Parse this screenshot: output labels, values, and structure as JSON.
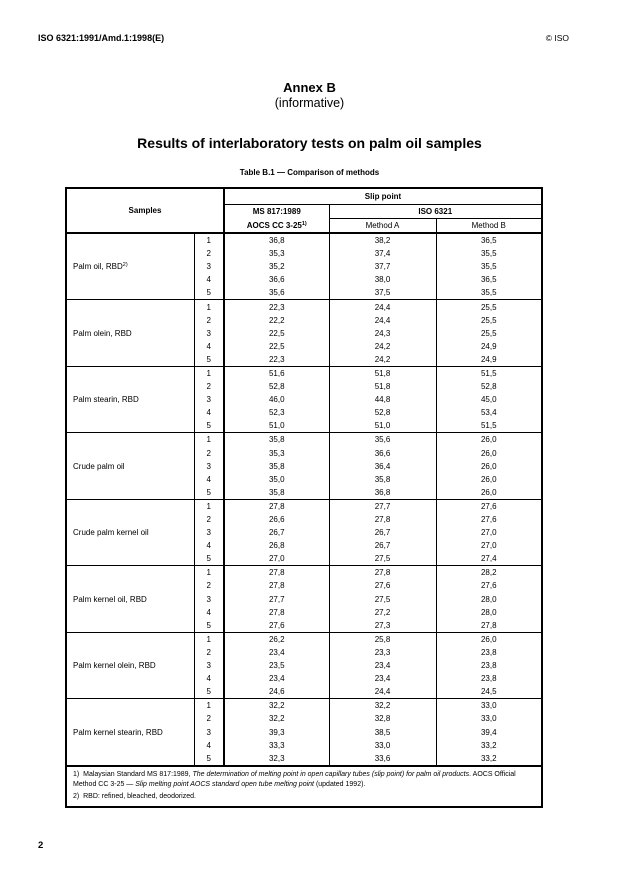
{
  "header": {
    "doc_id": "ISO 6321:1991/Amd.1:1998(E)",
    "copyright": "© ISO"
  },
  "annex": {
    "label": "Annex B",
    "type": "(informative)",
    "title": "Results of interlaboratory tests on palm oil samples"
  },
  "table": {
    "caption": "Table B.1 — Comparison of methods",
    "headers": {
      "samples": "Samples",
      "slip_point": "Slip point",
      "ms": "MS 817:1989",
      "aocs": "AOCS CC 3-25",
      "aocs_note": "1)",
      "iso": "ISO 6321",
      "method_a": "Method A",
      "method_b": "Method B"
    },
    "groups": [
      {
        "name": "Palm oil, RBD",
        "note": "2)",
        "rows": [
          [
            "1",
            "36,8",
            "38,2",
            "36,5"
          ],
          [
            "2",
            "35,3",
            "37,4",
            "35,5"
          ],
          [
            "3",
            "35,2",
            "37,7",
            "35,5"
          ],
          [
            "4",
            "36,6",
            "38,0",
            "36,5"
          ],
          [
            "5",
            "35,6",
            "37,5",
            "35,5"
          ]
        ]
      },
      {
        "name": "Palm olein, RBD",
        "rows": [
          [
            "1",
            "22,3",
            "24,4",
            "25,5"
          ],
          [
            "2",
            "22,2",
            "24,4",
            "25,5"
          ],
          [
            "3",
            "22,5",
            "24,3",
            "25,5"
          ],
          [
            "4",
            "22,5",
            "24,2",
            "24,9"
          ],
          [
            "5",
            "22,3",
            "24,2",
            "24,9"
          ]
        ]
      },
      {
        "name": "Palm stearin, RBD",
        "rows": [
          [
            "1",
            "51,6",
            "51,8",
            "51,5"
          ],
          [
            "2",
            "52,8",
            "51,8",
            "52,8"
          ],
          [
            "3",
            "46,0",
            "44,8",
            "45,0"
          ],
          [
            "4",
            "52,3",
            "52,8",
            "53,4"
          ],
          [
            "5",
            "51,0",
            "51,0",
            "51,5"
          ]
        ]
      },
      {
        "name": "Crude palm oil",
        "rows": [
          [
            "1",
            "35,8",
            "35,6",
            "26,0"
          ],
          [
            "2",
            "35,3",
            "36,6",
            "26,0"
          ],
          [
            "3",
            "35,8",
            "36,4",
            "26,0"
          ],
          [
            "4",
            "35,0",
            "35,8",
            "26,0"
          ],
          [
            "5",
            "35,8",
            "36,8",
            "26,0"
          ]
        ]
      },
      {
        "name": "Crude palm kernel oil",
        "rows": [
          [
            "1",
            "27,8",
            "27,7",
            "27,6"
          ],
          [
            "2",
            "26,6",
            "27,8",
            "27,6"
          ],
          [
            "3",
            "26,7",
            "26,7",
            "27,0"
          ],
          [
            "4",
            "26,8",
            "26,7",
            "27,0"
          ],
          [
            "5",
            "27,0",
            "27,5",
            "27,4"
          ]
        ]
      },
      {
        "name": "Palm kernel oil, RBD",
        "rows": [
          [
            "1",
            "27,8",
            "27,8",
            "28,2"
          ],
          [
            "2",
            "27,8",
            "27,6",
            "27,6"
          ],
          [
            "3",
            "27,7",
            "27,5",
            "28,0"
          ],
          [
            "4",
            "27,8",
            "27,2",
            "28,0"
          ],
          [
            "5",
            "27,6",
            "27,3",
            "27,8"
          ]
        ]
      },
      {
        "name": "Palm kernel olein, RBD",
        "rows": [
          [
            "1",
            "26,2",
            "25,8",
            "26,0"
          ],
          [
            "2",
            "23,4",
            "23,3",
            "23,8"
          ],
          [
            "3",
            "23,5",
            "23,4",
            "23,8"
          ],
          [
            "4",
            "23,4",
            "23,4",
            "23,8"
          ],
          [
            "5",
            "24,6",
            "24,4",
            "24,5"
          ]
        ]
      },
      {
        "name": "Palm kernel stearin, RBD",
        "rows": [
          [
            "1",
            "32,2",
            "32,2",
            "33,0"
          ],
          [
            "2",
            "32,2",
            "32,8",
            "33,0"
          ],
          [
            "3",
            "39,3",
            "38,5",
            "39,4"
          ],
          [
            "4",
            "33,3",
            "33,0",
            "33,2"
          ],
          [
            "5",
            "32,3",
            "33,6",
            "33,2"
          ]
        ]
      }
    ],
    "footnotes": {
      "fn1_num": "1)",
      "fn1_a": "Malaysian Standard MS 817:1989, ",
      "fn1_b": "The determination of melting point in open capillary tubes (slip point) for palm oil products",
      "fn1_c": ". AOCS Official Method CC 3-25 — ",
      "fn1_d": "Slip melting point AOCS standard open tube melting point",
      "fn1_e": " (updated 1992).",
      "fn2_num": "2)",
      "fn2": "RBD: refined, bleached, deodorized."
    }
  },
  "page_number": "2"
}
